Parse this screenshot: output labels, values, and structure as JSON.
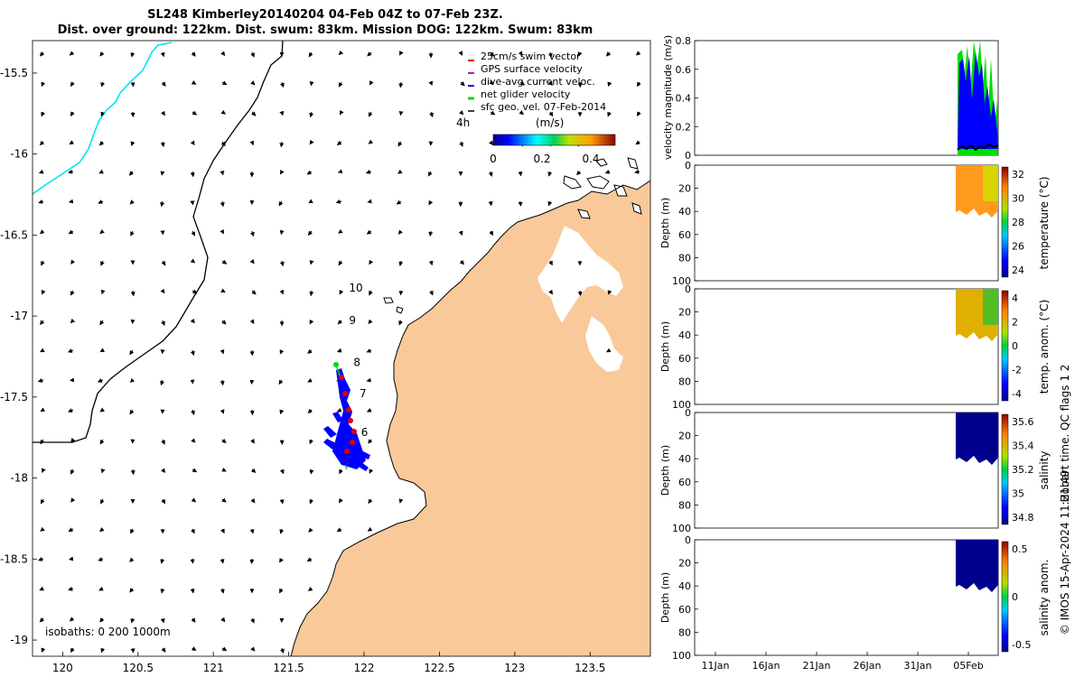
{
  "title": {
    "line1": "SL248 Kimberley20140204 04-Feb 04Z to 07-Feb 23Z.",
    "line2": "Dist. over ground: 122km. Dist. swum: 83km. Mission DOG: 122km. Swum: 83km"
  },
  "colors": {
    "land": "#f9c99a",
    "swim": "#e00000",
    "gps": "#cc00cc",
    "dive_avg": "#0000ff",
    "net": "#00dd00",
    "track": "#00ffff"
  },
  "chart_data": [
    {
      "type": "map",
      "xlim": [
        119.8,
        123.9
      ],
      "ylim": [
        -19.1,
        -15.3
      ],
      "x_ticks": [
        "120",
        "120.5",
        "121",
        "121.5",
        "122",
        "122.5",
        "123",
        "123.5"
      ],
      "y_ticks": [
        "-15.5",
        "-16",
        "-16.5",
        "-17",
        "-17.5",
        "-18",
        "-18.5",
        "-19"
      ],
      "legend": {
        "placement": "top-right",
        "items": [
          "25cm/s swim vector",
          "GPS surface velocity",
          "dive-avg current veloc.",
          "net glider velocity",
          "sfc geo. vel. 07-Feb-2014"
        ]
      },
      "colorbar": {
        "label": "(m/s)",
        "ticks": [
          "0",
          "0.2",
          "0.4"
        ],
        "range": [
          0,
          0.5
        ]
      },
      "duration_label": "4h",
      "track_day_labels": [
        {
          "label": "10",
          "lon": 121.9,
          "lat": -16.85
        },
        {
          "label": "9",
          "lon": 121.9,
          "lat": -17.05
        },
        {
          "label": "8",
          "lon": 121.93,
          "lat": -17.31
        },
        {
          "label": "7",
          "lon": 121.97,
          "lat": -17.5
        },
        {
          "label": "6",
          "lon": 121.98,
          "lat": -17.74
        }
      ],
      "isobaths": "isobaths: 0   200  1000m"
    },
    {
      "type": "line",
      "ylabel": "velocity magnitude (m/s)",
      "ylim": [
        0,
        0.8
      ],
      "y_ticks": [
        "0",
        "0.2",
        "0.4",
        "0.6",
        "0.8"
      ]
    },
    {
      "type": "heatmap",
      "ylabel": "Depth (m)",
      "colorbar_label": "temperature (°C)",
      "colorbar_ticks": [
        "32",
        "30",
        "28",
        "26",
        "24"
      ],
      "y_ticks": [
        "0",
        "20",
        "40",
        "60",
        "80",
        "100"
      ]
    },
    {
      "type": "heatmap",
      "ylabel": "Depth (m)",
      "colorbar_label": "temp. anom. (°C)",
      "colorbar_ticks": [
        "4",
        "2",
        "0",
        "-2",
        "-4"
      ],
      "y_ticks": [
        "0",
        "20",
        "40",
        "60",
        "80",
        "100"
      ]
    },
    {
      "type": "heatmap",
      "ylabel": "Depth (m)",
      "colorbar_label": "salinity",
      "colorbar_ticks": [
        "35.6",
        "35.4",
        "35.2",
        "35",
        "34.8"
      ],
      "y_ticks": [
        "0",
        "20",
        "40",
        "60",
        "80",
        "100"
      ]
    },
    {
      "type": "heatmap",
      "ylabel": "Depth (m)",
      "colorbar_label": "salinity anom.",
      "colorbar_ticks": [
        "0.5",
        "0",
        "-0.5"
      ],
      "y_ticks": [
        "0",
        "20",
        "40",
        "60",
        "80",
        "100"
      ],
      "x_ticks": [
        "11Jan",
        "16Jan",
        "21Jan",
        "26Jan",
        "31Jan",
        "05Feb"
      ]
    }
  ],
  "footer": {
    "qc_note": "Hobart time. QC flags 1  2",
    "credit": "© IMOS 15-Apr-2024 11:21:49"
  }
}
